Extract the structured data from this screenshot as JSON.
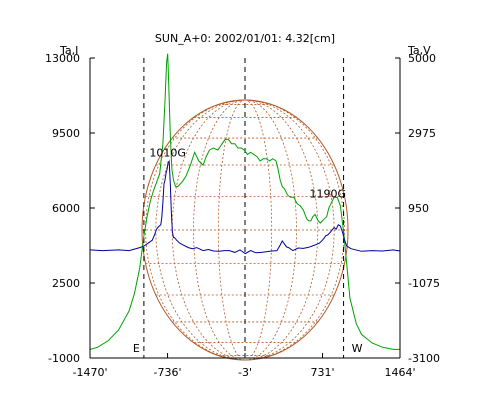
{
  "chart_data": {
    "type": "line",
    "title": "SUN_A+0: 2002/01/01: 4.32[cm]",
    "xlabel": "",
    "left_axis_label": "Ta,I",
    "right_axis_label": "Ta,V",
    "xlim": [
      -1470,
      1464
    ],
    "x_ticks": [
      {
        "value": -1470,
        "label": "-1470'"
      },
      {
        "value": -736,
        "label": "-736'"
      },
      {
        "value": -3,
        "label": "-3'"
      },
      {
        "value": 731,
        "label": "731'"
      },
      {
        "value": 1464,
        "label": "1464'"
      }
    ],
    "y_left_lim": [
      -1000,
      13000
    ],
    "y_left_ticks": [
      {
        "value": 13000,
        "label": "13000"
      },
      {
        "value": 9500,
        "label": "9500"
      },
      {
        "value": 6000,
        "label": "6000"
      },
      {
        "value": 2500,
        "label": "2500"
      },
      {
        "value": -1000,
        "label": "-1000"
      }
    ],
    "y_right_lim": [
      -3100,
      5000
    ],
    "y_right_ticks": [
      {
        "value": 5000,
        "label": "5000"
      },
      {
        "value": 2975,
        "label": "2975"
      },
      {
        "value": 950,
        "label": "950"
      },
      {
        "value": -1075,
        "label": "-1075"
      },
      {
        "value": -3100,
        "label": "-3100"
      }
    ],
    "limb_markers": [
      {
        "x": -960,
        "label": "E"
      },
      {
        "x": 930,
        "label": "W"
      }
    ],
    "center_marker": {
      "x": -3
    },
    "annotations": [
      {
        "text": "1010G",
        "x": -735,
        "y": 8400
      },
      {
        "text": "1190G",
        "x": 780,
        "y": 6500
      }
    ],
    "colors": {
      "intensity": "#00a000",
      "polarization": "#0000a0",
      "disk": "#b05a28",
      "axes": "#000000"
    },
    "series": [
      {
        "axis": "left",
        "color": "#00a000",
        "x": [
          -1470,
          -1400,
          -1300,
          -1200,
          -1100,
          -1050,
          -1000,
          -960,
          -930,
          -900,
          -870,
          -840,
          -810,
          -780,
          -760,
          -745,
          -735,
          -725,
          -710,
          -695,
          -680,
          -660,
          -640,
          -620,
          -600,
          -560,
          -520,
          -480,
          -440,
          -400,
          -370,
          -340,
          -300,
          -260,
          -220,
          -190,
          -160,
          -130,
          -100,
          -70,
          -40,
          -10,
          20,
          50,
          80,
          110,
          140,
          170,
          200,
          230,
          260,
          290,
          310,
          330,
          350,
          370,
          400,
          430,
          460,
          490,
          520,
          550,
          580,
          600,
          620,
          640,
          660,
          690,
          710,
          730,
          750,
          770,
          790,
          810,
          840,
          870,
          900,
          930,
          960,
          990,
          1050,
          1100,
          1200,
          1300,
          1400,
          1464
        ],
        "y": [
          -600,
          -500,
          -200,
          300,
          1200,
          2000,
          3200,
          4700,
          5600,
          6300,
          6800,
          7200,
          7600,
          9000,
          11000,
          12800,
          13200,
          11800,
          9400,
          7800,
          7300,
          7000,
          7000,
          7100,
          7200,
          7500,
          8000,
          8600,
          8200,
          8000,
          8400,
          8700,
          8800,
          8700,
          9000,
          9200,
          9200,
          9000,
          9000,
          8800,
          8800,
          8700,
          8500,
          8600,
          8500,
          8400,
          8200,
          8300,
          8300,
          8200,
          8300,
          8200,
          7800,
          7300,
          7000,
          6900,
          6600,
          6500,
          6500,
          6200,
          6100,
          5900,
          5500,
          5400,
          5400,
          5600,
          5700,
          5400,
          5300,
          5400,
          5500,
          5600,
          6000,
          6200,
          6500,
          6500,
          6100,
          4900,
          3400,
          1800,
          600,
          100,
          -300,
          -500,
          -600,
          -600
        ]
      },
      {
        "axis": "right",
        "color": "#0000a0",
        "x": [
          -1470,
          -1350,
          -1200,
          -1100,
          -1000,
          -960,
          -920,
          -880,
          -860,
          -840,
          -820,
          -800,
          -790,
          -780,
          -770,
          -760,
          -750,
          -740,
          -730,
          -720,
          -710,
          -700,
          -690,
          -680,
          -670,
          -650,
          -620,
          -580,
          -540,
          -500,
          -460,
          -400,
          -350,
          -300,
          -250,
          -200,
          -150,
          -100,
          -50,
          0,
          50,
          100,
          150,
          200,
          250,
          300,
          330,
          350,
          370,
          390,
          410,
          450,
          500,
          550,
          600,
          650,
          700,
          730,
          750,
          760,
          780,
          800,
          820,
          840,
          860,
          880,
          900,
          920,
          940,
          960,
          1000,
          1100,
          1200,
          1300,
          1400,
          1464
        ],
        "y": [
          -180,
          -200,
          -180,
          -200,
          -120,
          -80,
          0,
          80,
          220,
          380,
          450,
          500,
          700,
          1100,
          1600,
          1700,
          1900,
          2000,
          2200,
          2200,
          1600,
          800,
          300,
          150,
          150,
          80,
          0,
          -60,
          -120,
          -150,
          -120,
          -200,
          -170,
          -210,
          -220,
          -200,
          -200,
          -250,
          -180,
          -280,
          -200,
          -260,
          -250,
          -230,
          -210,
          -200,
          -50,
          60,
          -20,
          -100,
          -120,
          -200,
          -130,
          -140,
          -110,
          -60,
          0,
          80,
          150,
          200,
          220,
          280,
          350,
          420,
          380,
          500,
          460,
          300,
          80,
          -80,
          -150,
          -220,
          -200,
          -210,
          -180,
          -210
        ]
      }
    ]
  }
}
